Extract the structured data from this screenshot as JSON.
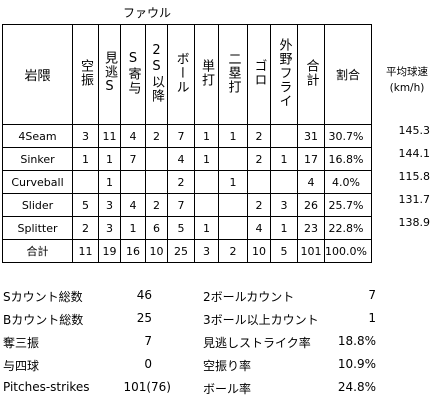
{
  "foul_label": "ファウル",
  "headers": {
    "pitcher": "岩隈",
    "cols": [
      "空振",
      "見逃S",
      "S寄与",
      "2S以降",
      "ボール",
      "単打",
      "二塁打",
      "ゴロ",
      "外野フライ",
      "合計",
      "割合"
    ],
    "speed_line1": "平均球速",
    "speed_line2": "(km/h)"
  },
  "rows": [
    {
      "name": "4Seam",
      "v": [
        "3",
        "11",
        "4",
        "2",
        "7",
        "1",
        "1",
        "2",
        "",
        "31",
        "30.7%"
      ],
      "speed": "145.3"
    },
    {
      "name": "Sinker",
      "v": [
        "1",
        "1",
        "7",
        "",
        "4",
        "1",
        "",
        "2",
        "1",
        "17",
        "16.8%"
      ],
      "speed": "144.1"
    },
    {
      "name": "Curveball",
      "v": [
        "",
        "1",
        "",
        "",
        "2",
        "",
        "1",
        "",
        "",
        "4",
        "4.0%"
      ],
      "speed": "115.8"
    },
    {
      "name": "Slider",
      "v": [
        "5",
        "3",
        "4",
        "2",
        "7",
        "",
        "",
        "2",
        "3",
        "26",
        "25.7%"
      ],
      "speed": "131.7"
    },
    {
      "name": "Splitter",
      "v": [
        "2",
        "3",
        "1",
        "6",
        "5",
        "1",
        "",
        "4",
        "1",
        "23",
        "22.8%"
      ],
      "speed": "138.9"
    },
    {
      "name": "合計",
      "v": [
        "11",
        "19",
        "16",
        "10",
        "25",
        "3",
        "2",
        "10",
        "5",
        "101",
        "100.0%"
      ],
      "speed": ""
    }
  ],
  "summary_left": [
    {
      "label": "Sカウント総数",
      "value": "46"
    },
    {
      "label": "Bカウント総数",
      "value": "25"
    },
    {
      "label": "奪三振",
      "value": "7"
    },
    {
      "label": "与四球",
      "value": "0"
    },
    {
      "label": "Pitches-strikes",
      "value": "101(76)"
    }
  ],
  "summary_right": [
    {
      "label": "2ボールカウント",
      "value": "7"
    },
    {
      "label": "3ボール以上カウント",
      "value": "1"
    },
    {
      "label": "見逃しストライク率",
      "value": "18.8%"
    },
    {
      "label": "空振り率",
      "value": "10.9%"
    },
    {
      "label": "ボール率",
      "value": "24.8%"
    }
  ]
}
